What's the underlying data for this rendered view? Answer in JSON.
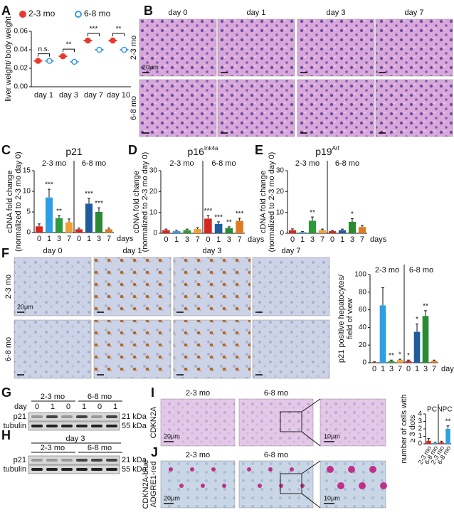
{
  "panels": [
    "A",
    "B",
    "C",
    "D",
    "E",
    "F",
    "G",
    "H",
    "I",
    "J"
  ],
  "chart_data": [
    {
      "type": "dot",
      "ylabel": "liver weight/ body weight",
      "categories": [
        "day 1",
        "day 3",
        "day 7",
        "day 10"
      ],
      "series": [
        {
          "name": "2-3 mo",
          "color": "#e8392f",
          "values": [
            0.028,
            0.033,
            0.05,
            0.05
          ]
        },
        {
          "name": "6-8 mo",
          "color": "#3a9be0",
          "values": [
            0.028,
            0.027,
            0.04,
            0.04
          ]
        }
      ],
      "ylim": [
        0,
        0.06
      ],
      "yticks": [
        {
          "value": 0,
          "label": "0.00"
        },
        {
          "value": 0.02,
          "label": "0.02"
        },
        {
          "value": 0.04,
          "label": "0.04"
        },
        {
          "value": 0.06,
          "label": "0.06"
        }
      ],
      "annotations": [
        "n.s.",
        "**",
        "***",
        "**"
      ],
      "legend": "top"
    },
    {
      "type": "bar",
      "title": "p21",
      "ylabel": [
        "cDNA fold change",
        "(normalized  to 2-3 mo day 0)"
      ],
      "xlabel": "days",
      "groups": [
        "2-3 mo",
        "6-8 mo"
      ],
      "categories": [
        "0",
        "1",
        "3",
        "7",
        "0",
        "1",
        "3",
        "7"
      ],
      "values": [
        1.5,
        8.5,
        3.5,
        2.5,
        0.8,
        7.0,
        5.0,
        0.8
      ],
      "errors": [
        0.6,
        2.0,
        0.6,
        0.8,
        0.3,
        1.3,
        1.0,
        0.3
      ],
      "colors": [
        "#d7261e",
        "#2e9fe6",
        "#2a9a3a",
        "#f0a030",
        "#d7261e",
        "#1f5c9e",
        "#2a8a32",
        "#e07a20"
      ],
      "annotations": [
        null,
        "***",
        "**",
        null,
        null,
        "***",
        "***",
        null
      ],
      "ylim": [
        0,
        15
      ],
      "yticks": [
        0,
        5,
        10,
        15
      ]
    },
    {
      "type": "bar",
      "title": "p16",
      "title_sup": "Ink4a",
      "ylabel": [
        "cDNA fold change",
        "(normalized  to 2-3 mo day 0)"
      ],
      "xlabel": "days",
      "groups": [
        "2-3 mo",
        "6-8 mo"
      ],
      "categories": [
        "0",
        "1",
        "3",
        "7",
        "0",
        "1",
        "3",
        "7"
      ],
      "values": [
        1.5,
        1.0,
        1.5,
        2.0,
        7.0,
        4.5,
        2.5,
        6.0
      ],
      "errors": [
        0.5,
        0.4,
        0.5,
        0.7,
        1.5,
        1.0,
        0.6,
        1.2
      ],
      "colors": [
        "#d7261e",
        "#2e9fe6",
        "#2a9a3a",
        "#f0a030",
        "#d7261e",
        "#1f5c9e",
        "#2a8a32",
        "#e07a20"
      ],
      "annotations": [
        null,
        null,
        null,
        null,
        "***",
        "***",
        "**",
        "***"
      ],
      "ylim": [
        0,
        30
      ],
      "yticks": [
        0,
        10,
        20,
        30
      ]
    },
    {
      "type": "bar",
      "title": "p19",
      "title_sup": "Arf",
      "ylabel": [
        "cDNA fold change",
        "(normalized  to 2-3 mo day 0)"
      ],
      "xlabel": "days",
      "groups": [
        "2-3 mo",
        "6-8 mo"
      ],
      "categories": [
        "0",
        "1",
        "3",
        "7",
        "0",
        "1",
        "3",
        "7"
      ],
      "values": [
        1.5,
        0.5,
        6.0,
        1.5,
        1.0,
        1.5,
        5.5,
        3.0
      ],
      "errors": [
        0.6,
        0.3,
        1.8,
        0.5,
        0.3,
        0.5,
        1.5,
        0.8
      ],
      "colors": [
        "#d7261e",
        "#2e9fe6",
        "#2a9a3a",
        "#f0a030",
        "#d7261e",
        "#1f5c9e",
        "#2a8a32",
        "#e07a20"
      ],
      "annotations": [
        null,
        null,
        "**",
        null,
        null,
        null,
        "*",
        null
      ],
      "ylim": [
        0,
        30
      ],
      "yticks": [
        0,
        10,
        20,
        30
      ]
    },
    {
      "type": "bar",
      "ylabel": [
        "p21 positive hepatocytes/",
        "field of view"
      ],
      "xlabel": "days",
      "groups": [
        "2-3 mo",
        "6-8 mo"
      ],
      "categories": [
        "0",
        "1",
        "3",
        "7",
        "0",
        "1",
        "3",
        "7"
      ],
      "values": [
        0.5,
        65,
        2,
        3,
        2,
        35,
        53,
        2
      ],
      "errors": [
        0.5,
        20,
        1,
        1,
        1,
        9,
        6,
        1
      ],
      "colors": [
        "#d7261e",
        "#2e9fe6",
        "#2a9a3a",
        "#f0a030",
        "#d7261e",
        "#1f5c9e",
        "#2a8a32",
        "#e07a20"
      ],
      "annotations": [
        null,
        null,
        "**",
        "*",
        "*",
        "*",
        "**",
        null
      ],
      "ylim": [
        0,
        100
      ],
      "yticks": [
        0,
        20,
        40,
        60,
        80,
        100
      ]
    },
    {
      "type": "bar",
      "ylabel": [
        "number of cells with",
        "≥ 3 dots"
      ],
      "groups": [
        "PC",
        "NPC"
      ],
      "categories": [
        "2-3 mo",
        "6-8 mo",
        "2-3 mo",
        "6-8 mo"
      ],
      "values": [
        0.4,
        0.1,
        0.2,
        2.0
      ],
      "errors": [
        0.3,
        0.1,
        0.15,
        0.4
      ],
      "colors": [
        "#d7261e",
        "#2e9fe6",
        "#d7261e",
        "#2e9fe6"
      ],
      "annotations": [
        null,
        null,
        null,
        "**"
      ],
      "ylim": [
        0,
        4
      ],
      "yticks": [
        0,
        1,
        2,
        3,
        4
      ],
      "rotate_categories": true
    }
  ],
  "micrographs_B": {
    "columns": [
      "day 0",
      "day 1",
      "day 3",
      "day 7"
    ],
    "rows": [
      "2-3 mo",
      "6-8 mo"
    ],
    "scale_bar": "20μm"
  },
  "micrographs_F": {
    "columns": [
      "day 0",
      "day 1",
      "day 3",
      "day 7"
    ],
    "rows": [
      "2-3 mo",
      "6-8 mo"
    ],
    "scale_bar": "20μm"
  },
  "blot_G": {
    "day_label": "day",
    "lanes": [
      "0",
      "1",
      "0",
      "1",
      "0",
      "1"
    ],
    "groups": [
      "2-3 mo",
      "6-8 mo"
    ],
    "bands": [
      "p21",
      "tubulin"
    ],
    "sizes": [
      "21 kDa",
      "55 kDa"
    ]
  },
  "blot_H": {
    "day_label": "day 3",
    "groups": [
      "2-3 mo",
      "6-8 mo"
    ],
    "bands": [
      "p21",
      "tubulin"
    ],
    "sizes": [
      "21 kDa",
      "55 kDa"
    ]
  },
  "ish_I": {
    "columns": [
      "2-3 mo",
      "6-8 mo"
    ],
    "row_label": "CDKN2A",
    "scale_bars": [
      "20μm",
      "10μm"
    ]
  },
  "ish_J": {
    "columns": [
      "2-3 mo",
      "6-8 mo"
    ],
    "row_label": [
      "CDKN2A-blue",
      "ADGRE1-red"
    ],
    "scale_bars": [
      "20μm",
      "10μm"
    ]
  }
}
